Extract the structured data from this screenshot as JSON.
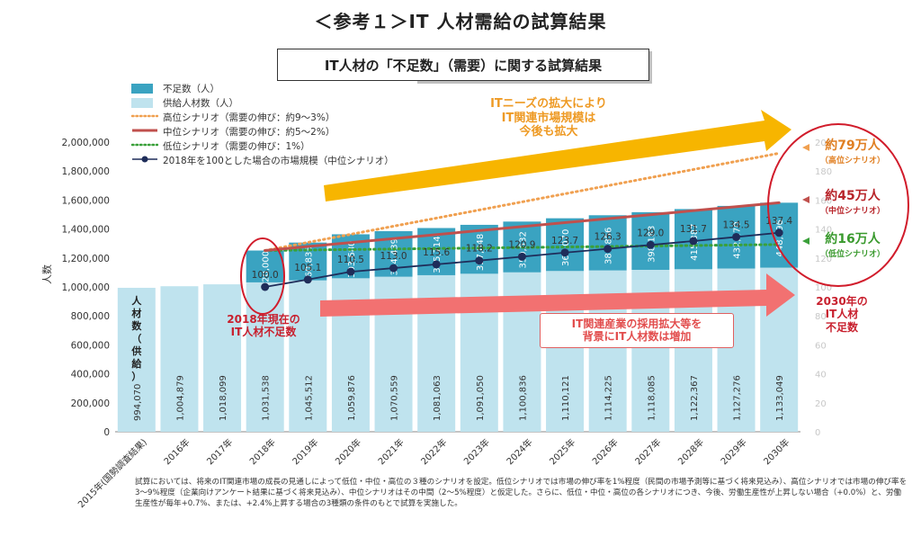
{
  "page": {
    "title": "＜参考１＞IT 人材需給の試算結果",
    "box_title": "IT人材の「不足数」（需要）に関する試算結果"
  },
  "chart_data": {
    "type": "bar",
    "title": "IT人材の「不足数」（需要）に関する試算結果",
    "ylabel": "人数",
    "ylim": [
      0,
      2000000
    ],
    "y2lim": [
      0,
      200
    ],
    "categories": [
      "2015年(国勢調査結果)",
      "2016年",
      "2017年",
      "2018年",
      "2019年",
      "2020年",
      "2021年",
      "2022年",
      "2023年",
      "2024年",
      "2025年",
      "2026年",
      "2027年",
      "2028年",
      "2029年",
      "2030年"
    ],
    "y_ticks": [
      "0",
      "200,000",
      "400,000",
      "600,000",
      "800,000",
      "1,000,000",
      "1,200,000",
      "1,400,000",
      "1,600,000",
      "1,800,000",
      "2,000,000"
    ],
    "y2_ticks": [
      "0",
      "20",
      "40",
      "60",
      "80",
      "100",
      "120",
      "140",
      "160",
      "180",
      "200"
    ],
    "supply_values": [
      994070,
      1004879,
      1018099,
      1031538,
      1045512,
      1059876,
      1070559,
      1081063,
      1091050,
      1100836,
      1110121,
      1114225,
      1118085,
      1122367,
      1127276,
      1133049
    ],
    "supply_labels": [
      "994,070",
      "1,004,879",
      "1,018,099",
      "1,031,538",
      "1,045,512",
      "1,059,876",
      "1,070,559",
      "1,081,063",
      "1,091,050",
      "1,100,836",
      "1,110,121",
      "1,114,225",
      "1,118,085",
      "1,122,367",
      "1,127,276",
      "1,133,049"
    ],
    "shortage_values": [
      null,
      null,
      null,
      220000,
      260835,
      303680,
      314439,
      325714,
      337848,
      350532,
      364070,
      380856,
      398183,
      415387,
      432270,
      448596
    ],
    "shortage_labels": [
      "",
      "",
      "",
      "220,000",
      "260,835",
      "303,680",
      "314,439",
      "325,714",
      "337,848",
      "350,532",
      "364,070",
      "380,856",
      "398,183",
      "415,387",
      "432,270",
      "448,596"
    ],
    "market_index": [
      null,
      null,
      null,
      100.0,
      105.1,
      110.5,
      113.0,
      115.6,
      118.2,
      120.9,
      123.7,
      126.3,
      129.0,
      131.7,
      134.5,
      137.4
    ],
    "market_index_labels": [
      "",
      "",
      "",
      "100.0",
      "105.1",
      "110.5",
      "113.0",
      "115.6",
      "118.2",
      "120.9",
      "123.7",
      "126.3",
      "129.0",
      "131.7",
      "134.5",
      "137.4"
    ],
    "high_scenario": {
      "start_index": 3,
      "start": 1251538,
      "end": 1923049
    },
    "mid_scenario": {
      "start_index": 3,
      "start": 1251538,
      "end": 1581645
    },
    "low_scenario": {
      "start_index": 3,
      "start": 1251538,
      "end": 1293049
    },
    "legend": [
      {
        "label": "不足数（人）",
        "kind": "box",
        "color": "#3aa3c1"
      },
      {
        "label": "供給人材数（人）",
        "kind": "box",
        "color": "#bfe3ee"
      },
      {
        "label": "高位シナリオ（需要の伸び：約9～3%）",
        "kind": "dot",
        "color": "#f0a050"
      },
      {
        "label": "中位シナリオ（需要の伸び：約5～2%）",
        "kind": "line",
        "color": "#c0504d"
      },
      {
        "label": "低位シナリオ（需要の伸び：1%）",
        "kind": "dot",
        "color": "#3aa03a"
      },
      {
        "label": "2018年を100とした場合の市場規模（中位シナリオ）",
        "kind": "marker",
        "color": "#1f2d5a"
      }
    ],
    "supply_axis_label": "人材数（供給）",
    "colors": {
      "supply": "#bfe3ee",
      "shortage": "#3aa3c1",
      "high": "#f0a050",
      "mid": "#c0504d",
      "low": "#3aa03a",
      "market": "#1f2d5a"
    }
  },
  "callouts": {
    "needs_growth": "ITニーズの拡大により\nIT関連市場規模は\n今後も拡大",
    "hiring_growth": "IT関連産業の採用拡大等を\n背景にIT人材数は増加",
    "current_shortage": "2018年現在の\nIT人材不足数",
    "high_value": "約79万人",
    "high_name": "（高位シナリオ）",
    "mid_value": "約45万人",
    "mid_name": "（中位シナリオ）",
    "low_value": "約16万人",
    "low_name": "（低位シナリオ）",
    "shortage_2030": "2030年の\nIT人材\n不足数"
  },
  "footnote": "試算においては、将来のIT関連市場の成長の見通しによって低位・中位・高位の３種のシナリオを設定。低位シナリオでは市場の伸び率を1%程度（民間の市場予測等に基づく将来見込み）、高位シナリオでは市場の伸び率を3～9%程度（企業向けアンケート結果に基づく将来見込み）、中位シナリオはその中間（2～5%程度）と仮定した。さらに、低位・中位・高位の各シナリオにつき、今後、労働生産性が上昇しない場合（+0.0%）と、労働生産性が毎年+0.7%、または、+2.4%上昇する場合の3種類の条件のもとで試算を実施した。"
}
